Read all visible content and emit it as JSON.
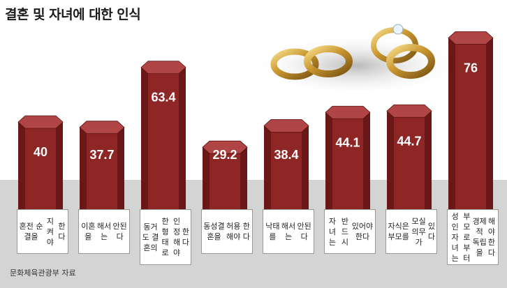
{
  "chart_data": {
    "type": "bar",
    "title": "결혼 및 자녀에 대한 인식",
    "source": "문화체육관광부 자료",
    "categories": [
      [
        "혼전 순결을",
        "지켜야",
        "한다"
      ],
      [
        "이혼을",
        "해서는",
        "안된다"
      ],
      [
        "동거도 결혼의",
        "한 형태로",
        "인정해야",
        "한다"
      ],
      [
        "동성결혼을",
        "허용해야",
        "한다"
      ],
      [
        "낙태를",
        "해서는",
        "안된다"
      ],
      [
        "자녀는",
        "반드시",
        "있어야 한다"
      ],
      [
        "자식은 부모를",
        "모실 의무가",
        "있다"
      ],
      [
        "성인 자녀는",
        "부모로부터",
        "경제적 독립을",
        "해야 한다"
      ]
    ],
    "values": [
      40,
      37.7,
      63.4,
      29.2,
      38.4,
      44.1,
      44.7,
      76
    ],
    "value_labels": [
      "40",
      "37.7",
      "63.4",
      "29.2",
      "38.4",
      "44.1",
      "44.7",
      "76"
    ],
    "ylim": [
      0,
      80
    ],
    "colors": {
      "bar_front": "#8e2626",
      "bar_side": "#6a1717",
      "bar_top": "#b04545",
      "value_text": "#ffffff"
    }
  }
}
